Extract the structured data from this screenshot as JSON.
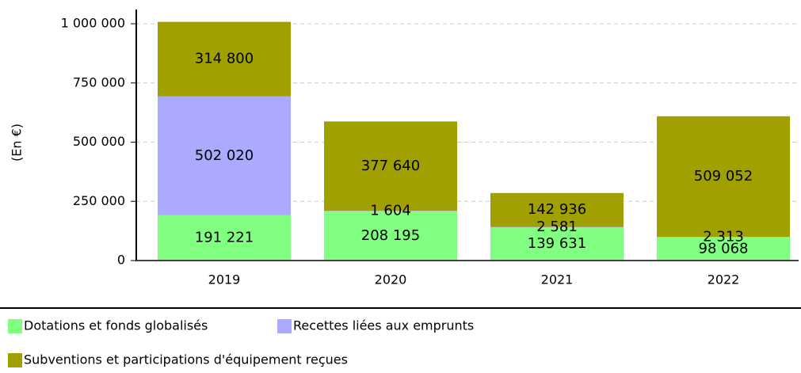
{
  "chart_data": {
    "type": "stacked_bar",
    "y_label": "(En €)",
    "categories": [
      "2019",
      "2020",
      "2021",
      "2022"
    ],
    "series": [
      {
        "name": "Dotations et fonds globalisés",
        "color": "#80ff80",
        "values": [
          191221,
          208195,
          139631,
          98068
        ],
        "value_labels": [
          "191 221",
          "208 195",
          "139 631",
          "98 068"
        ]
      },
      {
        "name": "Recettes liées aux emprunts",
        "color": "#aaaaff",
        "values": [
          502020,
          1604,
          2581,
          2313
        ],
        "value_labels": [
          "502 020",
          "1 604",
          "2 581",
          "2 313"
        ]
      },
      {
        "name": "Subventions et participations d'équipement reçues",
        "color": "#a0a000",
        "values": [
          314800,
          377640,
          142936,
          509052
        ],
        "value_labels": [
          "314 800",
          "377 640",
          "142 936",
          "509 052"
        ]
      }
    ],
    "ylim": [
      0,
      1000000
    ],
    "yticks": [
      0,
      {
        "value": 250000,
        "label": "250 000"
      },
      {
        "value": 500000,
        "label": "500 000"
      },
      {
        "value": 750000,
        "label": "750 000"
      },
      {
        "value": 1000000,
        "label": "1 000 000"
      }
    ],
    "grid": true
  }
}
